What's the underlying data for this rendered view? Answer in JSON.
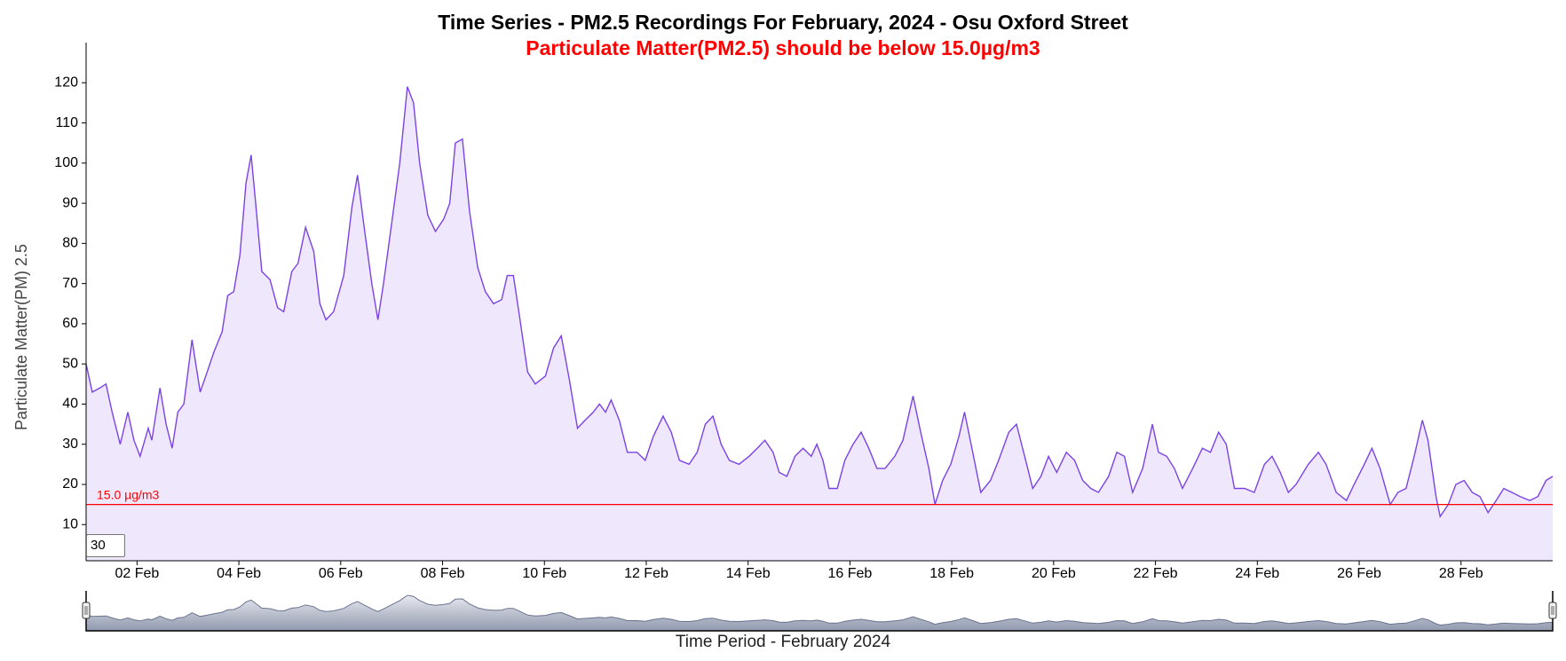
{
  "chart_data": {
    "type": "area",
    "title": "Time Series - PM2.5 Recordings For February, 2024 - Osu Oxford Street",
    "subtitle": "Particulate Matter(PM2.5) should be below 15.0µg/m3",
    "y_label": "Particulate Matter(PM) 2.5",
    "x_label": "Time Period - February 2024",
    "color": "#7b42e6",
    "fill": "#efe8fc",
    "roller": 30,
    "threshold": {
      "value": 15,
      "label": "15.0 µg/m3",
      "color": "#ff0000"
    },
    "xlim": [
      1,
      29.8
    ],
    "ylim": [
      1,
      130
    ],
    "yticks": [
      10,
      20,
      30,
      40,
      50,
      60,
      70,
      80,
      90,
      100,
      110,
      120
    ],
    "xticks": [
      {
        "value": 2,
        "label": "02 Feb"
      },
      {
        "value": 4,
        "label": "04 Feb"
      },
      {
        "value": 6,
        "label": "06 Feb"
      },
      {
        "value": 8,
        "label": "08 Feb"
      },
      {
        "value": 10,
        "label": "10 Feb"
      },
      {
        "value": 12,
        "label": "12 Feb"
      },
      {
        "value": 14,
        "label": "14 Feb"
      },
      {
        "value": 16,
        "label": "16 Feb"
      },
      {
        "value": 18,
        "label": "18 Feb"
      },
      {
        "value": 20,
        "label": "20 Feb"
      },
      {
        "value": 22,
        "label": "22 Feb"
      },
      {
        "value": 24,
        "label": "24 Feb"
      },
      {
        "value": 26,
        "label": "26 Feb"
      },
      {
        "value": 28,
        "label": "28 Feb"
      }
    ],
    "x": [
      1.0,
      1.12,
      1.27,
      1.39,
      1.51,
      1.67,
      1.82,
      1.94,
      2.06,
      2.22,
      2.29,
      2.45,
      2.57,
      2.69,
      2.8,
      2.92,
      3.08,
      3.24,
      3.35,
      3.51,
      3.67,
      3.78,
      3.9,
      4.02,
      4.14,
      4.24,
      4.33,
      4.45,
      4.61,
      4.76,
      4.88,
      5.04,
      5.16,
      5.31,
      5.47,
      5.59,
      5.71,
      5.86,
      6.06,
      6.22,
      6.33,
      6.45,
      6.61,
      6.73,
      6.84,
      7.0,
      7.16,
      7.31,
      7.43,
      7.55,
      7.71,
      7.86,
      8.02,
      8.14,
      8.25,
      8.39,
      8.53,
      8.69,
      8.84,
      9.0,
      9.16,
      9.27,
      9.39,
      9.51,
      9.67,
      9.82,
      10.02,
      10.18,
      10.33,
      10.49,
      10.65,
      10.8,
      10.96,
      11.08,
      11.2,
      11.31,
      11.47,
      11.63,
      11.82,
      11.98,
      12.14,
      12.33,
      12.49,
      12.65,
      12.84,
      13.0,
      13.16,
      13.31,
      13.47,
      13.63,
      13.82,
      14.02,
      14.18,
      14.33,
      14.49,
      14.61,
      14.76,
      14.92,
      15.08,
      15.24,
      15.35,
      15.47,
      15.59,
      15.75,
      15.9,
      16.06,
      16.22,
      16.37,
      16.53,
      16.69,
      16.88,
      17.04,
      17.24,
      17.39,
      17.55,
      17.67,
      17.82,
      17.98,
      18.14,
      18.25,
      18.41,
      18.57,
      18.76,
      18.92,
      19.12,
      19.27,
      19.43,
      19.59,
      19.75,
      19.9,
      20.06,
      20.25,
      20.41,
      20.57,
      20.73,
      20.88,
      21.08,
      21.24,
      21.39,
      21.55,
      21.75,
      21.94,
      22.06,
      22.22,
      22.37,
      22.53,
      22.73,
      22.92,
      23.08,
      23.24,
      23.39,
      23.55,
      23.75,
      23.94,
      24.14,
      24.29,
      24.45,
      24.61,
      24.76,
      25.0,
      25.2,
      25.35,
      25.55,
      25.75,
      25.9,
      26.1,
      26.25,
      26.41,
      26.61,
      26.76,
      26.92,
      27.08,
      27.24,
      27.35,
      27.51,
      27.59,
      27.75,
      27.9,
      28.06,
      28.22,
      28.37,
      28.53,
      28.69,
      28.84,
      29.0,
      29.16,
      29.35,
      29.51,
      29.67,
      29.8
    ],
    "values": [
      50,
      43,
      44,
      45,
      38,
      30,
      38,
      31,
      27,
      34,
      31,
      44,
      35,
      29,
      38,
      40,
      56,
      43,
      47,
      53,
      58,
      67,
      68,
      77,
      95,
      102,
      90,
      73,
      71,
      64,
      63,
      73,
      75,
      84,
      78,
      65,
      61,
      63,
      72,
      89,
      97,
      85,
      70,
      61,
      70,
      85,
      100,
      119,
      115,
      100,
      87,
      83,
      86,
      90,
      105,
      106,
      88,
      74,
      68,
      65,
      66,
      72,
      72,
      62,
      48,
      45,
      47,
      54,
      57,
      46,
      34,
      36,
      38,
      40,
      38,
      41,
      36,
      28,
      28,
      26,
      32,
      37,
      33,
      26,
      25,
      28,
      35,
      37,
      30,
      26,
      25,
      27,
      29,
      31,
      28,
      23,
      22,
      27,
      29,
      27,
      30,
      26,
      19,
      19,
      26,
      30,
      33,
      29,
      24,
      24,
      27,
      31,
      42,
      33,
      24,
      15,
      21,
      25,
      32,
      38,
      28,
      18,
      21,
      26,
      33,
      35,
      27,
      19,
      22,
      27,
      23,
      28,
      26,
      21,
      19,
      18,
      22,
      28,
      27,
      18,
      24,
      35,
      28,
      27,
      24,
      19,
      24,
      29,
      28,
      33,
      30,
      19,
      19,
      18,
      25,
      27,
      23,
      18,
      20,
      25,
      28,
      25,
      18,
      16,
      20,
      25,
      29,
      24,
      15,
      18,
      19,
      27,
      36,
      31,
      17,
      12,
      15,
      20,
      21,
      18,
      17,
      13,
      16,
      19,
      18,
      17,
      16,
      17,
      21,
      22
    ]
  }
}
